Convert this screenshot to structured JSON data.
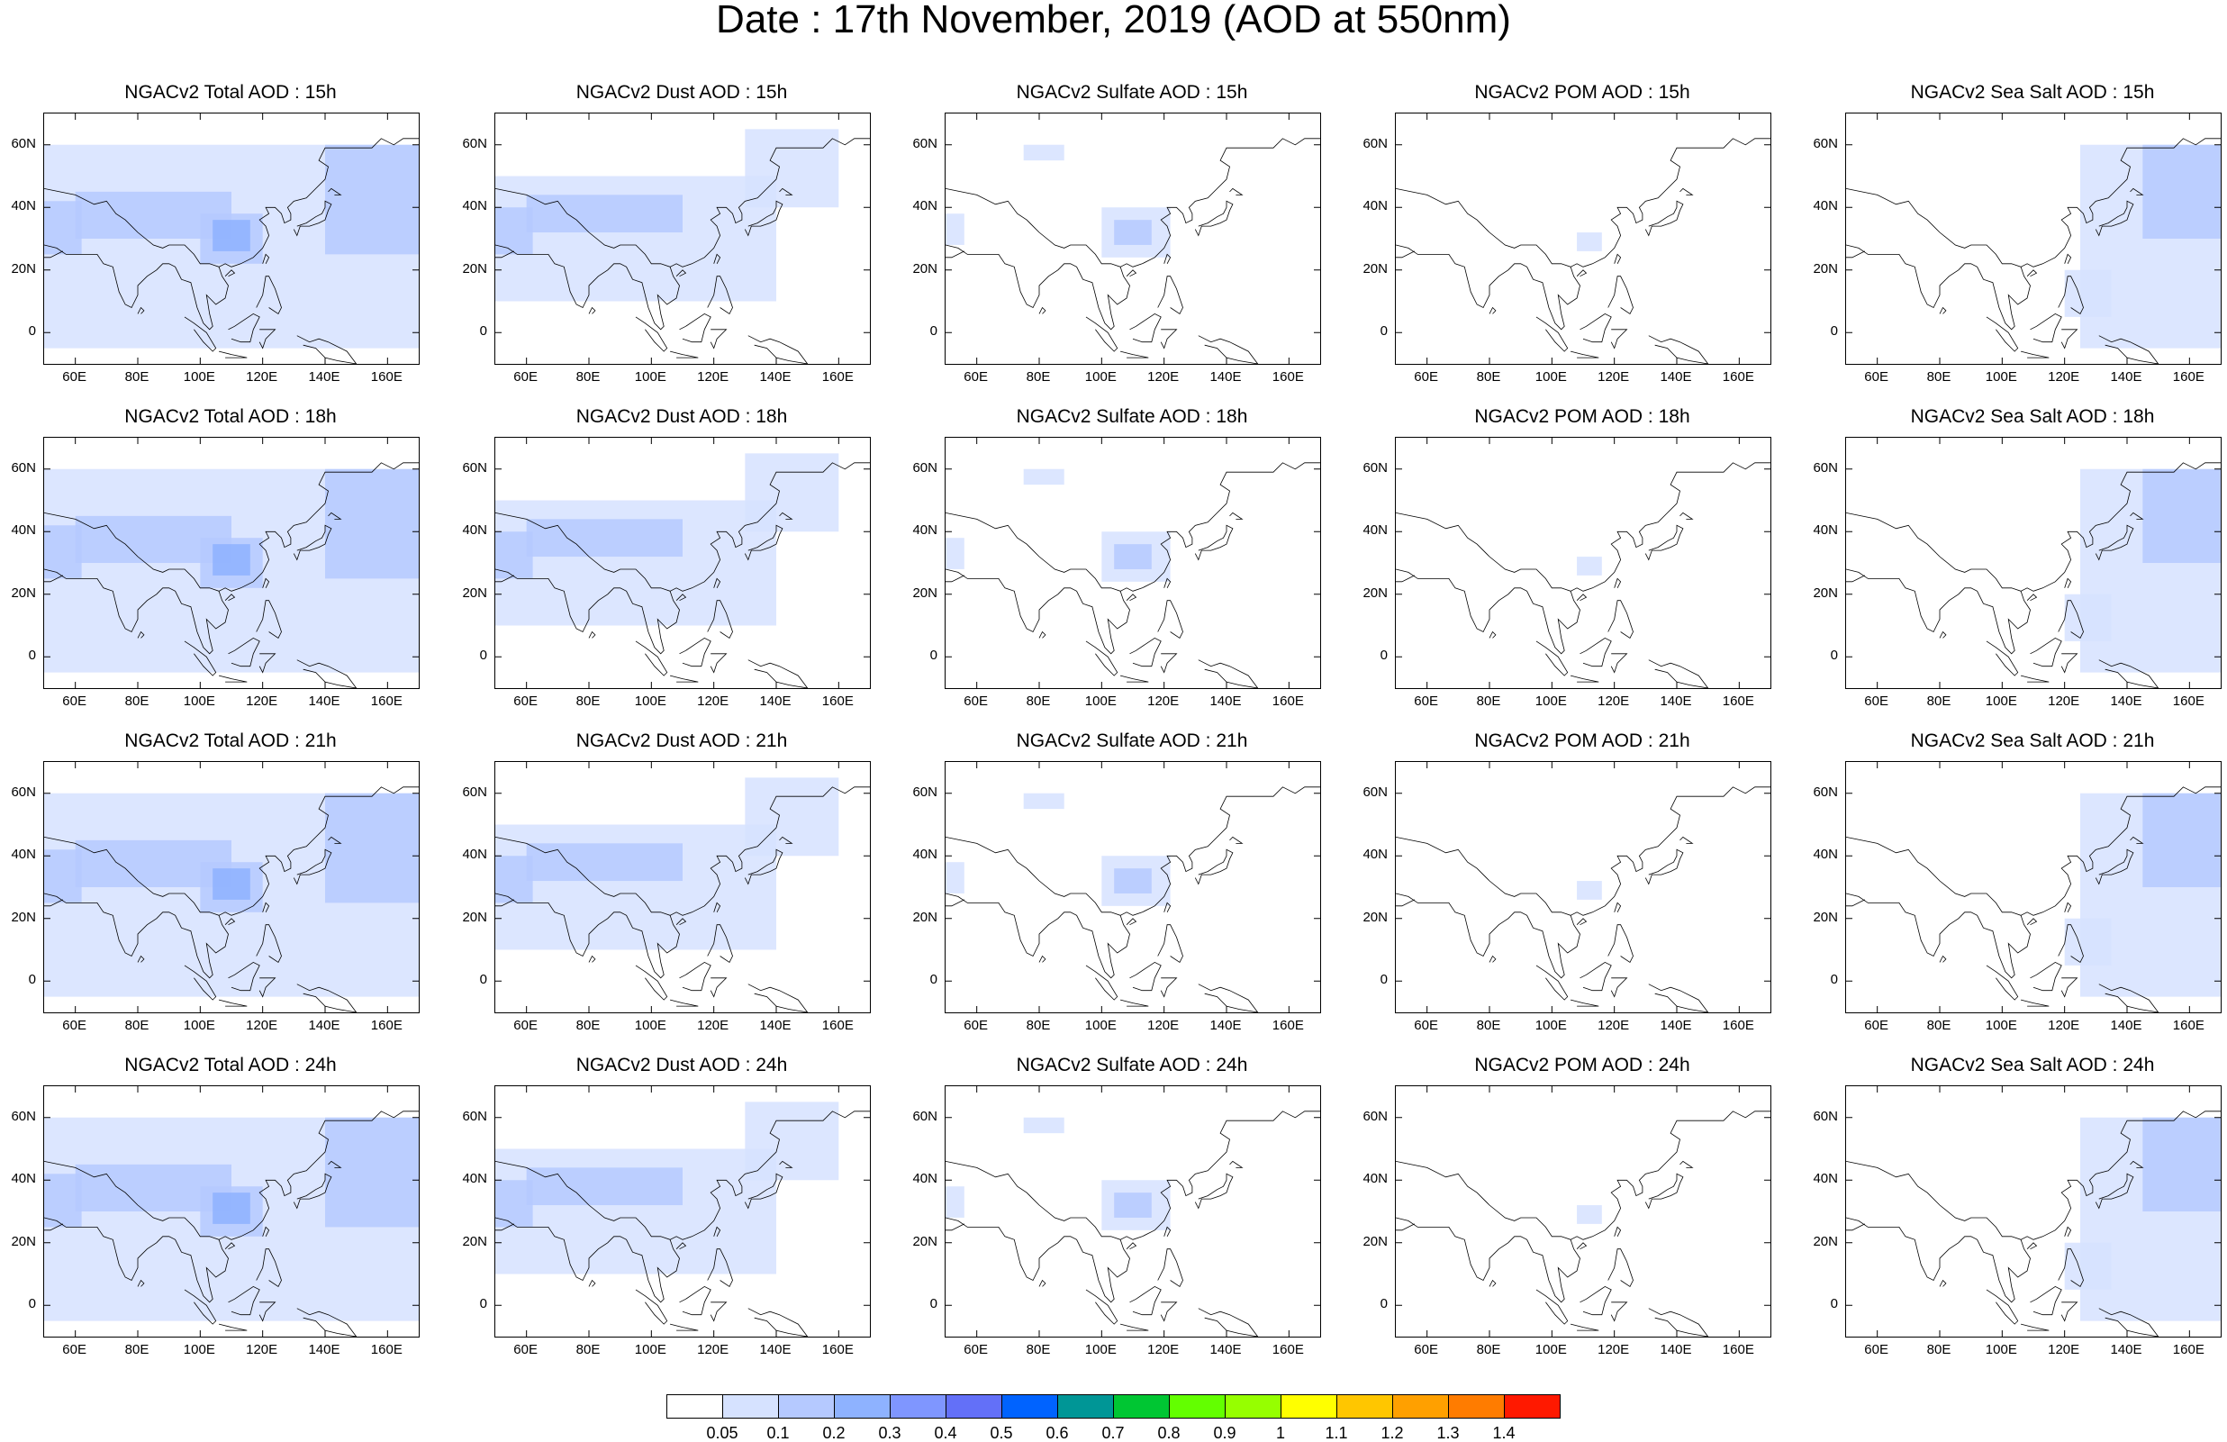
{
  "title": "Date : 17th November, 2019 (AOD at 550nm)",
  "map_extent": {
    "lon_min": 50,
    "lon_max": 170,
    "lat_min": -10,
    "lat_max": 70
  },
  "x_ticks": [
    "60E",
    "80E",
    "100E",
    "120E",
    "140E",
    "160E"
  ],
  "y_ticks": [
    "60N",
    "40N",
    "20N",
    "0"
  ],
  "species": [
    {
      "key": "total",
      "name": "Total"
    },
    {
      "key": "dust",
      "name": "Dust"
    },
    {
      "key": "sulfate",
      "name": "Sulfate"
    },
    {
      "key": "pom",
      "name": "POM"
    },
    {
      "key": "seasalt",
      "name": "Sea Salt"
    }
  ],
  "hours": [
    "15h",
    "18h",
    "21h",
    "24h"
  ],
  "panels": [
    [
      "NGACv2 Total AOD : 15h",
      "NGACv2 Dust AOD : 15h",
      "NGACv2 Sulfate AOD : 15h",
      "NGACv2 POM AOD : 15h",
      "NGACv2 Sea Salt AOD : 15h"
    ],
    [
      "NGACv2 Total AOD : 18h",
      "NGACv2 Dust AOD : 18h",
      "NGACv2 Sulfate AOD : 18h",
      "NGACv2 POM AOD : 18h",
      "NGACv2 Sea Salt AOD : 18h"
    ],
    [
      "NGACv2 Total AOD : 21h",
      "NGACv2 Dust AOD : 21h",
      "NGACv2 Sulfate AOD : 21h",
      "NGACv2 POM AOD : 21h",
      "NGACv2 Sea Salt AOD : 21h"
    ],
    [
      "NGACv2 Total AOD : 24h",
      "NGACv2 Dust AOD : 24h",
      "NGACv2 Sulfate AOD : 24h",
      "NGACv2 POM AOD : 24h",
      "NGACv2 Sea Salt  AOD : 24h"
    ]
  ],
  "colorbar": {
    "labels": [
      "0.05",
      "0.1",
      "0.2",
      "0.3",
      "0.4",
      "0.5",
      "0.6",
      "0.7",
      "0.8",
      "0.9",
      "1",
      "1.1",
      "1.2",
      "1.3",
      "1.4"
    ],
    "colors": [
      "#ffffff",
      "#d6e2ff",
      "#b5c9ff",
      "#8eb2ff",
      "#7f96ff",
      "#6370f8",
      "#0063ff",
      "#009696",
      "#00c633",
      "#63ff00",
      "#96ff00",
      "#ffff00",
      "#ffc600",
      "#ffa000",
      "#ff7c00",
      "#ff1900"
    ]
  },
  "fields": {
    "total": [
      {
        "lon": [
          50,
          170
        ],
        "lat": [
          -5,
          60
        ],
        "level": 1
      },
      {
        "lon": [
          60,
          110
        ],
        "lat": [
          30,
          45
        ],
        "level": 2
      },
      {
        "lon": [
          100,
          120
        ],
        "lat": [
          22,
          38
        ],
        "level": 2
      },
      {
        "lon": [
          104,
          116
        ],
        "lat": [
          26,
          36
        ],
        "level": 3
      },
      {
        "lon": [
          140,
          170
        ],
        "lat": [
          25,
          60
        ],
        "level": 2
      },
      {
        "lon": [
          50,
          62
        ],
        "lat": [
          25,
          42
        ],
        "level": 2
      }
    ],
    "dust": [
      {
        "lon": [
          50,
          140
        ],
        "lat": [
          10,
          50
        ],
        "level": 1
      },
      {
        "lon": [
          60,
          110
        ],
        "lat": [
          32,
          44
        ],
        "level": 2
      },
      {
        "lon": [
          50,
          62
        ],
        "lat": [
          25,
          40
        ],
        "level": 2
      },
      {
        "lon": [
          130,
          160
        ],
        "lat": [
          40,
          65
        ],
        "level": 1
      }
    ],
    "sulfate": [
      {
        "lon": [
          100,
          122
        ],
        "lat": [
          24,
          40
        ],
        "level": 1
      },
      {
        "lon": [
          104,
          116
        ],
        "lat": [
          28,
          36
        ],
        "level": 2
      },
      {
        "lon": [
          50,
          56
        ],
        "lat": [
          28,
          38
        ],
        "level": 1
      },
      {
        "lon": [
          75,
          88
        ],
        "lat": [
          55,
          60
        ],
        "level": 1
      }
    ],
    "pom": [
      {
        "lon": [
          108,
          116
        ],
        "lat": [
          26,
          32
        ],
        "level": 1
      }
    ],
    "seasalt": [
      {
        "lon": [
          125,
          170
        ],
        "lat": [
          -5,
          60
        ],
        "level": 1
      },
      {
        "lon": [
          145,
          170
        ],
        "lat": [
          30,
          60
        ],
        "level": 2
      },
      {
        "lon": [
          120,
          135
        ],
        "lat": [
          5,
          20
        ],
        "level": 1
      }
    ]
  }
}
